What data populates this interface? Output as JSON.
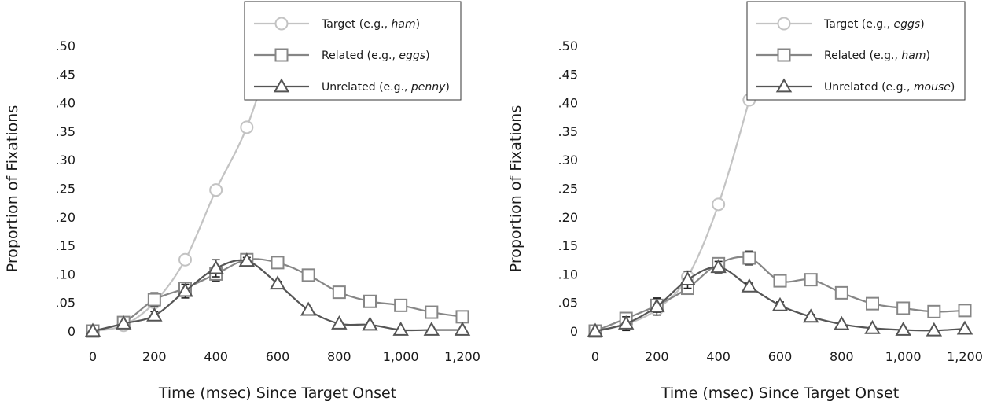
{
  "chart_data": [
    {
      "type": "line",
      "xlabel": "Time (msec) Since Target Onset",
      "ylabel": "Proportion of Fixations",
      "xlim": [
        0,
        1200
      ],
      "ylim": [
        0,
        0.5
      ],
      "x_ticks": [
        "0",
        "200",
        "400",
        "600",
        "800",
        "1,000",
        "1,200"
      ],
      "y_ticks": [
        "0",
        ".05",
        ".10",
        ".15",
        ".20",
        ".25",
        ".30",
        ".35",
        ".40",
        ".45",
        ".50"
      ],
      "grid": false,
      "legend": "top-right",
      "series": [
        {
          "name": "Target",
          "legend_prefix": "Target (e.g., ",
          "legend_word": "ham",
          "legend_suffix": ")",
          "marker": "circle",
          "color": "#c3c3c3",
          "x": [
            0,
            100,
            200,
            300,
            400,
            500,
            600
          ],
          "y": [
            0,
            0.01,
            0.05,
            0.125,
            0.247,
            0.357,
            0.52
          ],
          "err": [
            0,
            0,
            0,
            0,
            0,
            0,
            0
          ]
        },
        {
          "name": "Related",
          "legend_prefix": "Related (e.g., ",
          "legend_word": "eggs",
          "legend_suffix": ")",
          "marker": "square",
          "color": "#868686",
          "x": [
            0,
            100,
            200,
            300,
            400,
            500,
            600,
            700,
            800,
            900,
            1000,
            1100,
            1200
          ],
          "y": [
            0,
            0.015,
            0.055,
            0.075,
            0.1,
            0.125,
            0.12,
            0.098,
            0.068,
            0.052,
            0.045,
            0.033,
            0.025
          ],
          "err": [
            0,
            0.005,
            0.012,
            0.01,
            0.012,
            0.007,
            0.007,
            0.006,
            0.006,
            0.006,
            0.006,
            0.006,
            0.006
          ]
        },
        {
          "name": "Unrelated",
          "legend_prefix": "Unrelated (e.g., ",
          "legend_word": "penny",
          "legend_suffix": ")",
          "marker": "triangle",
          "color": "#555555",
          "x": [
            0,
            100,
            200,
            300,
            400,
            500,
            600,
            700,
            800,
            900,
            1000,
            1100,
            1200
          ],
          "y": [
            0,
            0.013,
            0.027,
            0.07,
            0.11,
            0.123,
            0.083,
            0.037,
            0.013,
            0.011,
            0.002,
            0.002,
            0.002
          ],
          "err": [
            0,
            0.003,
            0.007,
            0.012,
            0.015,
            0.006,
            0.004,
            0.003,
            0.002,
            0.002,
            0.001,
            0.001,
            0.001
          ]
        }
      ]
    },
    {
      "type": "line",
      "xlabel": "Time (msec) Since Target Onset",
      "ylabel": "Proportion of Fixations",
      "xlim": [
        0,
        1200
      ],
      "ylim": [
        0,
        0.5
      ],
      "x_ticks": [
        "0",
        "200",
        "400",
        "600",
        "800",
        "1,000",
        "1,200"
      ],
      "y_ticks": [
        "0",
        ".05",
        ".10",
        ".15",
        ".20",
        ".25",
        ".30",
        ".35",
        ".40",
        ".45",
        ".50"
      ],
      "grid": false,
      "legend": "top-right",
      "series": [
        {
          "name": "Target",
          "legend_prefix": "Target (e.g., ",
          "legend_word": "eggs",
          "legend_suffix": ")",
          "marker": "circle",
          "color": "#c3c3c3",
          "x": [
            0,
            100,
            200,
            300,
            400,
            500,
            550
          ],
          "y": [
            0,
            0.012,
            0.038,
            0.095,
            0.222,
            0.405,
            0.52
          ],
          "err": [
            0,
            0,
            0,
            0,
            0,
            0,
            0
          ]
        },
        {
          "name": "Related",
          "legend_prefix": "Related (e.g., ",
          "legend_word": "ham",
          "legend_suffix": ")",
          "marker": "square",
          "color": "#868686",
          "x": [
            0,
            100,
            200,
            300,
            400,
            500,
            600,
            700,
            800,
            900,
            1000,
            1100,
            1200
          ],
          "y": [
            0,
            0.022,
            0.045,
            0.075,
            0.118,
            0.128,
            0.088,
            0.09,
            0.067,
            0.048,
            0.04,
            0.034,
            0.036
          ],
          "err": [
            0,
            0.006,
            0.012,
            0.01,
            0.01,
            0.012,
            0.008,
            0.008,
            0.007,
            0.007,
            0.007,
            0.007,
            0.007
          ]
        },
        {
          "name": "Unrelated",
          "legend_prefix": "Unrelated (e.g., ",
          "legend_word": "mouse",
          "legend_suffix": ")",
          "marker": "triangle",
          "color": "#555555",
          "x": [
            0,
            100,
            200,
            300,
            400,
            500,
            600,
            700,
            800,
            900,
            1000,
            1100,
            1200
          ],
          "y": [
            0,
            0.013,
            0.043,
            0.09,
            0.112,
            0.078,
            0.045,
            0.025,
            0.012,
            0.005,
            0.002,
            0.001,
            0.004
          ],
          "err": [
            0,
            0.012,
            0.015,
            0.015,
            0.01,
            0.006,
            0.006,
            0.004,
            0.003,
            0.002,
            0.002,
            0.002,
            0.002
          ]
        }
      ]
    }
  ]
}
